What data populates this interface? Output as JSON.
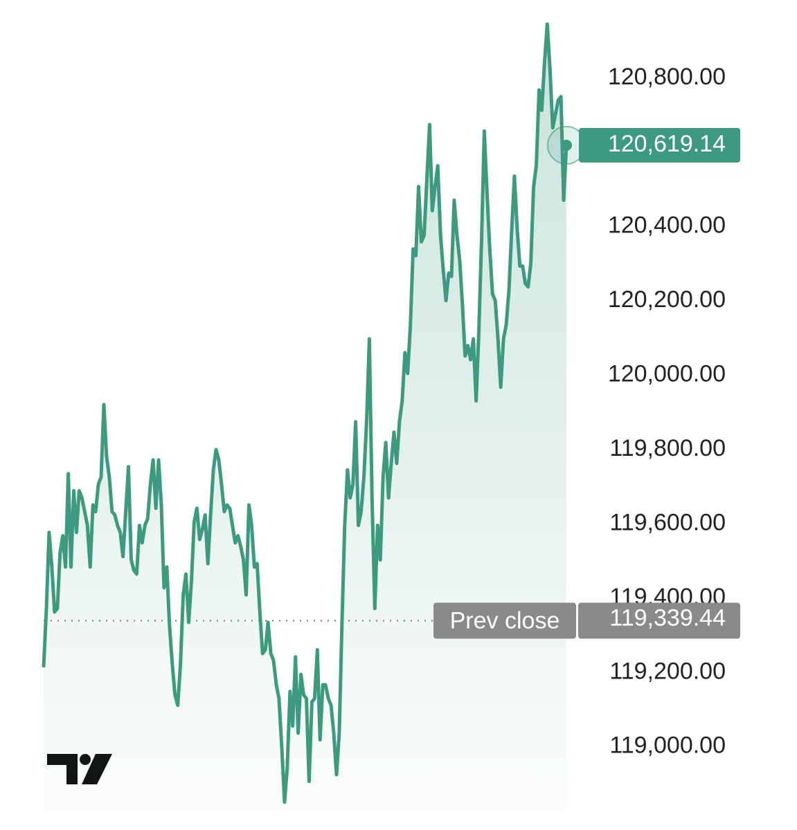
{
  "chart_data": {
    "type": "line",
    "color": "#3d9a7f",
    "values": [
      119214,
      119372,
      119577,
      119484,
      119363,
      119372,
      119521,
      119568,
      119484,
      119735,
      119484,
      119689,
      119577,
      119689,
      119670,
      119633,
      119596,
      119484,
      119651,
      119633,
      119707,
      119726,
      119921,
      119782,
      119726,
      119633,
      119624,
      119596,
      119577,
      119512,
      119633,
      119754,
      119503,
      119475,
      119465,
      119596,
      119549,
      119596,
      119614,
      119707,
      119772,
      119642,
      119772,
      119651,
      119428,
      119484,
      119326,
      119223,
      119140,
      119112,
      119223,
      119409,
      119465,
      119335,
      119447,
      119605,
      119642,
      119558,
      119586,
      119624,
      119493,
      119624,
      119745,
      119800,
      119772,
      119707,
      119633,
      119651,
      119642,
      119596,
      119549,
      119568,
      119540,
      119503,
      119409,
      119651,
      119596,
      119484,
      119493,
      119363,
      119251,
      119261,
      119335,
      119251,
      119233,
      119167,
      119130,
      119000,
      118851,
      118944,
      119149,
      119056,
      119242,
      119037,
      119195,
      119140,
      119130,
      118907,
      119121,
      119130,
      119261,
      119019,
      119167,
      119167,
      119130,
      119112,
      119037,
      118925,
      119037,
      119335,
      119596,
      119745,
      119670,
      119707,
      119875,
      119596,
      119633,
      119726,
      119875,
      120098,
      119670,
      119372,
      119596,
      119503,
      119726,
      119819,
      119670,
      119763,
      119847,
      119763,
      119875,
      119931,
      120061,
      120005,
      120135,
      120340,
      120322,
      120508,
      120359,
      120377,
      120526,
      120675,
      120443,
      120508,
      120564,
      120377,
      120284,
      120201,
      120275,
      120266,
      120471,
      120377,
      120312,
      120191,
      120052,
      120080,
      120042,
      120098,
      119931,
      120117,
      120368,
      120657,
      120489,
      120340,
      120219,
      120201,
      120098,
      119968,
      120098,
      120135,
      120229,
      120387,
      120536,
      120396,
      120294,
      120294,
      120247,
      120238,
      120303,
      120508,
      120564,
      120768,
      120713,
      120843,
      120945,
      120824,
      120666,
      120703,
      120740,
      120750,
      120471,
      120619.14
    ],
    "ylim": [
      118832,
      121010
    ],
    "yticks": [
      {
        "value": 119000,
        "label": "119,000.00"
      },
      {
        "value": 119200,
        "label": "119,200.00"
      },
      {
        "value": 119400,
        "label": "119,400.00"
      },
      {
        "value": 119600,
        "label": "119,600.00"
      },
      {
        "value": 119800,
        "label": "119,800.00"
      },
      {
        "value": 120000,
        "label": "120,000.00"
      },
      {
        "value": 120200,
        "label": "120,200.00"
      },
      {
        "value": 120400,
        "label": "120,400.00"
      },
      {
        "value": 120800,
        "label": "120,800.00"
      }
    ],
    "last_price": {
      "value": 120619.14,
      "label": "120,619.14"
    },
    "prev_close": {
      "name": "Prev close",
      "value": 119339.44,
      "label": "119,339.44"
    }
  }
}
